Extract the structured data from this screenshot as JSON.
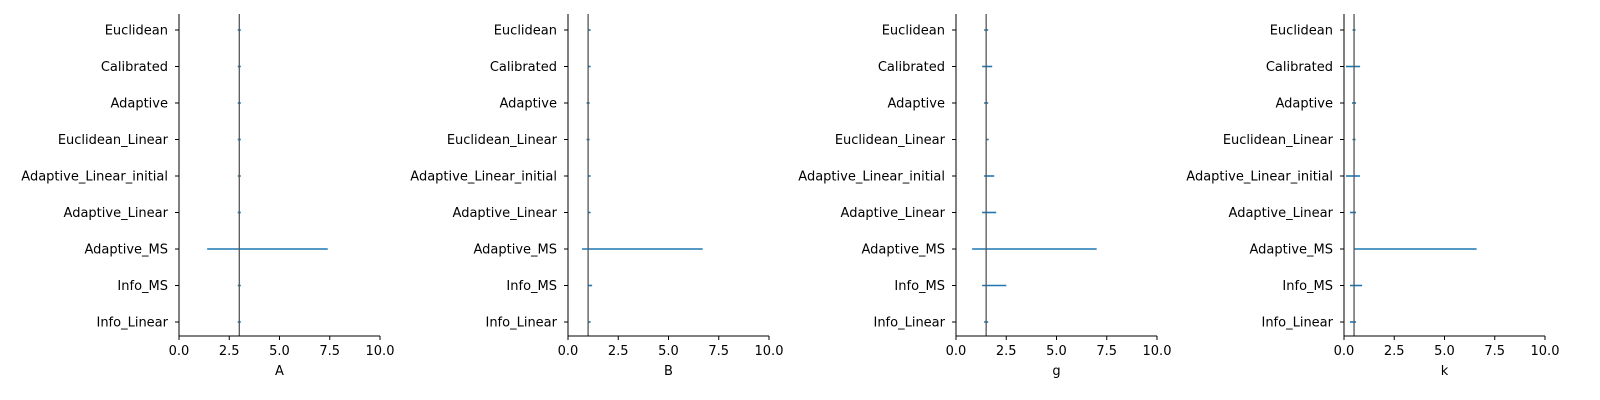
{
  "colors": {
    "interval": "#1f77b4",
    "reference": "#555555",
    "axis": "#000000"
  },
  "chart_data": [
    {
      "type": "interval",
      "xlabel": "A",
      "xlim": [
        0,
        10
      ],
      "xticks": [
        "0.0",
        "2.5",
        "5.0",
        "7.5",
        "10.0"
      ],
      "categories": [
        "Euclidean",
        "Calibrated",
        "Adaptive",
        "Euclidean_Linear",
        "Adaptive_Linear_initial",
        "Adaptive_Linear",
        "Adaptive_MS",
        "Info_MS",
        "Info_Linear"
      ],
      "reference": 3.0,
      "intervals": [
        [
          3.0,
          3.0
        ],
        [
          3.0,
          3.0
        ],
        [
          3.0,
          3.0
        ],
        [
          3.0,
          3.0
        ],
        [
          3.0,
          3.0
        ],
        [
          3.0,
          3.0
        ],
        [
          1.4,
          7.4
        ],
        [
          3.0,
          3.0
        ],
        [
          3.0,
          3.0
        ]
      ]
    },
    {
      "type": "interval",
      "xlabel": "B",
      "xlim": [
        0,
        10
      ],
      "xticks": [
        "0.0",
        "2.5",
        "5.0",
        "7.5",
        "10.0"
      ],
      "categories": [
        "Euclidean",
        "Calibrated",
        "Adaptive",
        "Euclidean_Linear",
        "Adaptive_Linear_initial",
        "Adaptive_Linear",
        "Adaptive_MS",
        "Info_MS",
        "Info_Linear"
      ],
      "reference": 1.0,
      "intervals": [
        [
          1.0,
          1.1
        ],
        [
          1.0,
          1.1
        ],
        [
          1.0,
          1.0
        ],
        [
          1.0,
          1.0
        ],
        [
          1.0,
          1.1
        ],
        [
          1.0,
          1.1
        ],
        [
          0.7,
          6.7
        ],
        [
          1.0,
          1.2
        ],
        [
          1.0,
          1.1
        ]
      ]
    },
    {
      "type": "interval",
      "xlabel": "g",
      "xlim": [
        0,
        10
      ],
      "xticks": [
        "0.0",
        "2.5",
        "5.0",
        "7.5",
        "10.0"
      ],
      "categories": [
        "Euclidean",
        "Calibrated",
        "Adaptive",
        "Euclidean_Linear",
        "Adaptive_Linear_initial",
        "Adaptive_Linear",
        "Adaptive_MS",
        "Info_MS",
        "Info_Linear"
      ],
      "reference": 1.5,
      "intervals": [
        [
          1.4,
          1.6
        ],
        [
          1.3,
          1.8
        ],
        [
          1.4,
          1.6
        ],
        [
          1.5,
          1.6
        ],
        [
          1.4,
          1.9
        ],
        [
          1.3,
          2.0
        ],
        [
          0.8,
          7.0
        ],
        [
          1.3,
          2.5
        ],
        [
          1.4,
          1.6
        ]
      ]
    },
    {
      "type": "interval",
      "xlabel": "k",
      "xlim": [
        0,
        10
      ],
      "xticks": [
        "0.0",
        "2.5",
        "5.0",
        "7.5",
        "10.0"
      ],
      "categories": [
        "Euclidean",
        "Calibrated",
        "Adaptive",
        "Euclidean_Linear",
        "Adaptive_Linear_initial",
        "Adaptive_Linear",
        "Adaptive_MS",
        "Info_MS",
        "Info_Linear"
      ],
      "reference": 0.5,
      "intervals": [
        [
          0.5,
          0.5
        ],
        [
          0.1,
          0.8
        ],
        [
          0.4,
          0.6
        ],
        [
          0.5,
          0.5
        ],
        [
          0.1,
          0.8
        ],
        [
          0.3,
          0.6
        ],
        [
          0.5,
          6.6
        ],
        [
          0.3,
          0.9
        ],
        [
          0.3,
          0.6
        ]
      ]
    }
  ]
}
